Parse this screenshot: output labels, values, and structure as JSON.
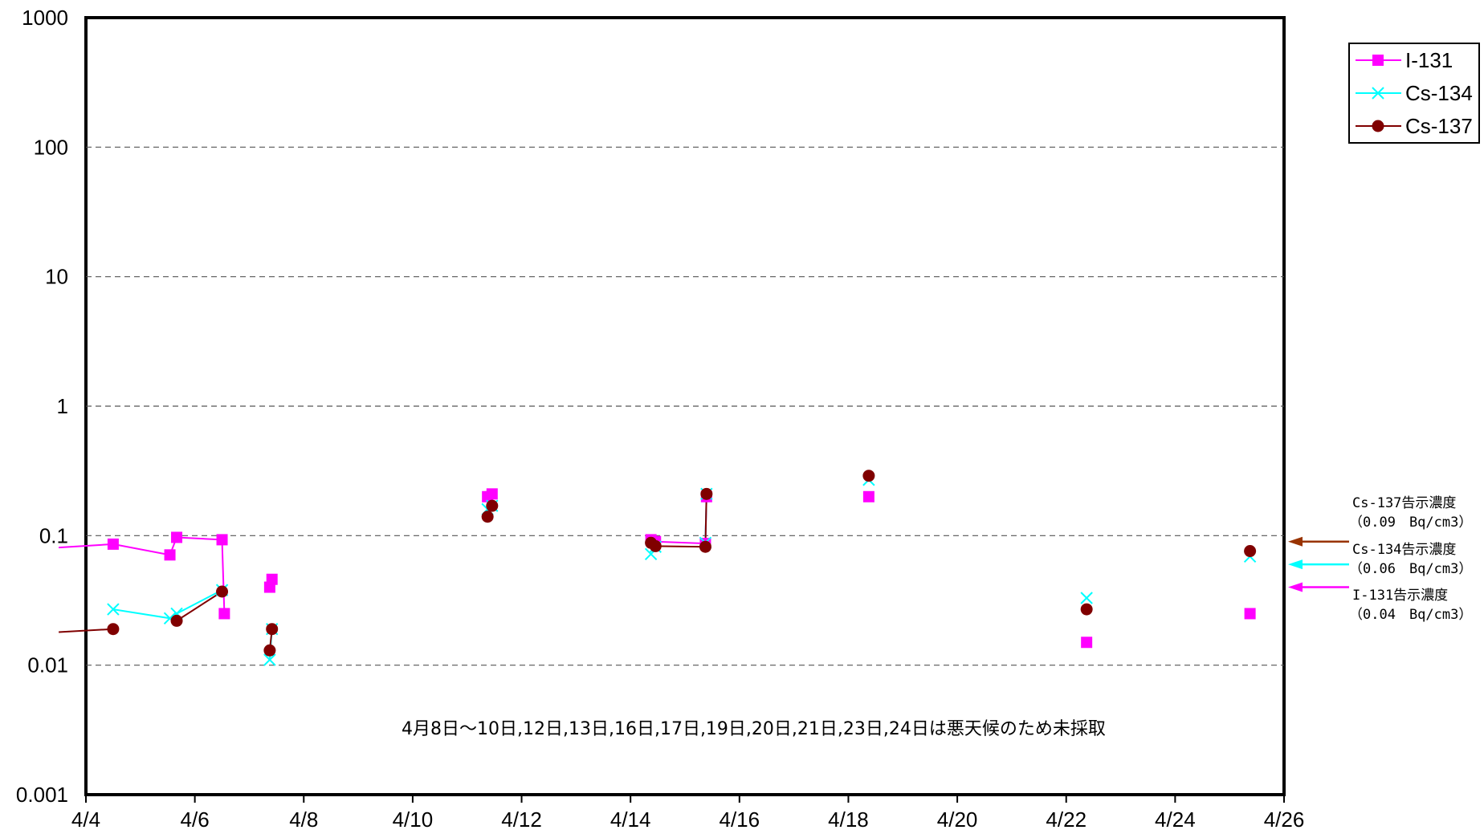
{
  "chart_data": {
    "type": "scatter",
    "title": "",
    "xlabel": "",
    "ylabel": "",
    "y_scale": "log",
    "ylim": [
      0.001,
      1000
    ],
    "y_ticks": [
      "1000",
      "100",
      "10",
      "1",
      "0.1",
      "0.01",
      "0.001"
    ],
    "xlim": [
      "4/4",
      "4/26"
    ],
    "x_ticks": [
      "4/4",
      "4/6",
      "4/8",
      "4/10",
      "4/12",
      "4/14",
      "4/16",
      "4/18",
      "4/20",
      "4/22",
      "4/24",
      "4/26"
    ],
    "grid": "horizontal dashed",
    "legend_position": "top-right",
    "series": [
      {
        "name": "I-131",
        "color": "#ff00ff",
        "marker": "square",
        "points": [
          {
            "x": "4/3 12:00",
            "y": 0.081
          },
          {
            "x": "4/4 12:00",
            "y": 0.086
          },
          {
            "x": "4/5 13:00",
            "y": 0.071
          },
          {
            "x": "4/5 16:00",
            "y": 0.097
          },
          {
            "x": "4/6 12:00",
            "y": 0.093
          },
          {
            "x": "4/6 13:00",
            "y": 0.025
          },
          {
            "x": "4/7 09:00",
            "y": 0.04
          },
          {
            "x": "4/7 10:00",
            "y": 0.046
          },
          {
            "x": "4/11 09:00",
            "y": 0.2
          },
          {
            "x": "4/11 11:00",
            "y": 0.21
          },
          {
            "x": "4/14 09:00",
            "y": 0.093
          },
          {
            "x": "4/14 11:00",
            "y": 0.09
          },
          {
            "x": "4/15 09:00",
            "y": 0.087
          },
          {
            "x": "4/15 09:30",
            "y": 0.2
          },
          {
            "x": "4/18 09:00",
            "y": 0.2
          },
          {
            "x": "4/22 09:00",
            "y": 0.015
          },
          {
            "x": "4/25 09:00",
            "y": 0.025
          }
        ]
      },
      {
        "name": "Cs-134",
        "color": "#00ffff",
        "marker": "x",
        "points": [
          {
            "x": "4/4 12:00",
            "y": 0.027
          },
          {
            "x": "4/5 13:00",
            "y": 0.023
          },
          {
            "x": "4/5 16:00",
            "y": 0.025
          },
          {
            "x": "4/6 12:00",
            "y": 0.038
          },
          {
            "x": "4/7 09:00",
            "y": 0.011
          },
          {
            "x": "4/7 10:00",
            "y": 0.019
          },
          {
            "x": "4/11 09:00",
            "y": 0.16
          },
          {
            "x": "4/11 11:00",
            "y": 0.17
          },
          {
            "x": "4/14 09:00",
            "y": 0.072
          },
          {
            "x": "4/14 11:00",
            "y": 0.082
          },
          {
            "x": "4/15 09:00",
            "y": 0.088
          },
          {
            "x": "4/15 09:30",
            "y": 0.21
          },
          {
            "x": "4/18 09:00",
            "y": 0.27
          },
          {
            "x": "4/22 09:00",
            "y": 0.033
          },
          {
            "x": "4/25 09:00",
            "y": 0.069
          }
        ]
      },
      {
        "name": "Cs-137",
        "color": "#800000",
        "marker": "circle",
        "points": [
          {
            "x": "4/3 12:00",
            "y": 0.018
          },
          {
            "x": "4/4 12:00",
            "y": 0.019
          },
          {
            "x": "4/5 16:00",
            "y": 0.022
          },
          {
            "x": "4/6 12:00",
            "y": 0.037
          },
          {
            "x": "4/7 09:00",
            "y": 0.013
          },
          {
            "x": "4/7 10:00",
            "y": 0.019
          },
          {
            "x": "4/11 09:00",
            "y": 0.14
          },
          {
            "x": "4/11 11:00",
            "y": 0.17
          },
          {
            "x": "4/14 09:00",
            "y": 0.088
          },
          {
            "x": "4/14 11:00",
            "y": 0.083
          },
          {
            "x": "4/15 09:00",
            "y": 0.082
          },
          {
            "x": "4/15 09:30",
            "y": 0.21
          },
          {
            "x": "4/18 09:00",
            "y": 0.29
          },
          {
            "x": "4/22 09:00",
            "y": 0.027
          },
          {
            "x": "4/25 09:00",
            "y": 0.076
          }
        ]
      }
    ],
    "connected_segments": [
      {
        "series": "I-131",
        "from": 0,
        "to": 7,
        "breaks_after": [
          5
        ]
      },
      {
        "series": "I-131",
        "from": 10,
        "to": 13
      },
      {
        "series": "Cs-134",
        "from": 0,
        "to": 5,
        "breaks_after": [
          3
        ]
      },
      {
        "series": "Cs-134",
        "from": 10,
        "to": 11
      },
      {
        "series": "Cs-137",
        "from": 0,
        "to": 5,
        "breaks_after": [
          1,
          3
        ]
      },
      {
        "series": "Cs-137",
        "from": 8,
        "to": 11
      }
    ],
    "annotation": "4月8日～10日,12日,13日,16日,17日,19日,20日,21日,23日,24日は悪天候のため未採取",
    "limits": [
      {
        "label": "Cs-137告示濃度",
        "value_text": "（0.09　Bq/cm3）",
        "value": 0.09,
        "color": "#993300"
      },
      {
        "label": "Cs-134告示濃度",
        "value_text": "（0.06　Bq/cm3）",
        "value": 0.06,
        "color": "#00ffff"
      },
      {
        "label": "I-131告示濃度",
        "value_text": "（0.04　Bq/cm3）",
        "value": 0.04,
        "color": "#ff00ff"
      }
    ]
  }
}
